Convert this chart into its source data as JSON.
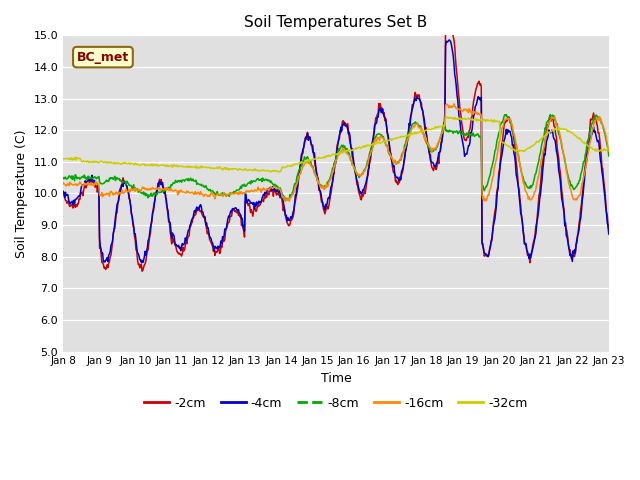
{
  "title": "Soil Temperatures Set B",
  "xlabel": "Time",
  "ylabel": "Soil Temperature (C)",
  "ylim": [
    5.0,
    15.0
  ],
  "yticks": [
    5.0,
    6.0,
    7.0,
    8.0,
    9.0,
    10.0,
    11.0,
    12.0,
    13.0,
    14.0,
    15.0
  ],
  "xtick_labels": [
    "Jan 8",
    "Jan 9",
    "Jan 10",
    "Jan 11",
    "Jan 12",
    "Jan 13",
    "Jan 14",
    "Jan 15",
    "Jan 16",
    "Jan 17",
    "Jan 18",
    "Jan 19",
    "Jan 20",
    "Jan 21",
    "Jan 22",
    "Jan 23"
  ],
  "num_days": 15,
  "points_per_day": 48,
  "colors": {
    "-2cm": "#cc0000",
    "-4cm": "#0000cc",
    "-8cm": "#00aa00",
    "-16cm": "#ff8800",
    "-32cm": "#cccc00"
  },
  "annotation_text": "BC_met",
  "annotation_color": "#8b0000",
  "annotation_bg": "#ffffcc",
  "plot_bg": "#e0e0e0",
  "linewidth": 1.1
}
